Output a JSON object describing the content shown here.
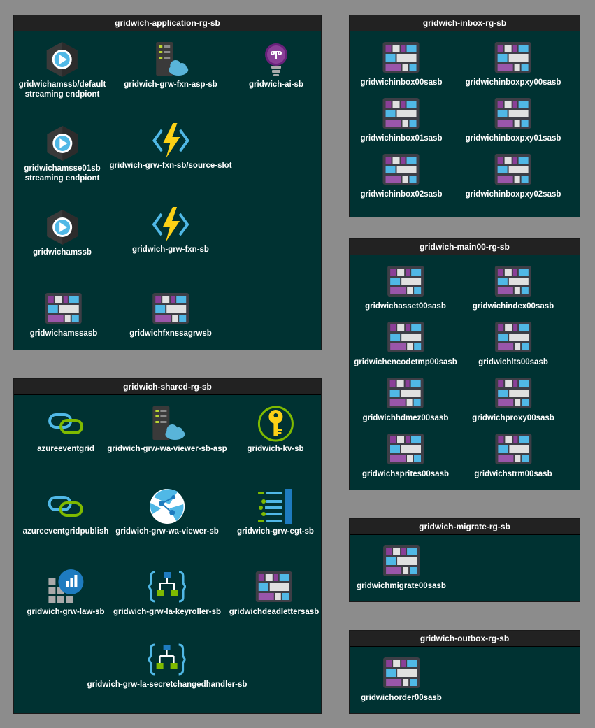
{
  "groups": {
    "application": {
      "title": "gridwich-application-rg-sb",
      "nodes": [
        {
          "label": "gridwichamssb/default",
          "label2": "streaming endpiont",
          "icon": "media-streaming-icon"
        },
        {
          "label": "gridwich-grw-fxn-asp-sb",
          "icon": "app-service-plan-icon"
        },
        {
          "label": "gridwich-ai-sb",
          "icon": "application-insights-icon"
        },
        {
          "label": "gridwichamsse01sb",
          "label2": "streaming endpiont",
          "icon": "media-streaming-icon"
        },
        {
          "label": "gridwich-grw-fxn-sb/source-slot",
          "icon": "function-app-icon"
        },
        {
          "label": "gridwichamssb",
          "icon": "media-services-icon"
        },
        {
          "label": "gridwich-grw-fxn-sb",
          "icon": "function-app-icon"
        },
        {
          "label": "gridwichamssasb",
          "icon": "storage-account-icon"
        },
        {
          "label": "gridwichfxnssagrwsb",
          "icon": "storage-account-icon"
        }
      ]
    },
    "shared": {
      "title": "gridwich-shared-rg-sb",
      "nodes": [
        {
          "label": "azureeventgrid",
          "icon": "event-grid-icon"
        },
        {
          "label": "gridwich-grw-wa-viewer-sb-asp",
          "icon": "app-service-plan-icon"
        },
        {
          "label": "gridwich-kv-sb",
          "icon": "key-vault-icon"
        },
        {
          "label": "azureeventgridpublish",
          "icon": "event-grid-icon"
        },
        {
          "label": "gridwich-grw-wa-viewer-sb",
          "icon": "web-app-icon"
        },
        {
          "label": "gridwich-grw-egt-sb",
          "icon": "event-grid-topic-icon"
        },
        {
          "label": "gridwich-grw-law-sb",
          "icon": "log-analytics-icon"
        },
        {
          "label": "gridwich-grw-la-keyroller-sb",
          "icon": "logic-app-icon"
        },
        {
          "label": "gridwichdeadlettersasb",
          "icon": "storage-account-icon"
        },
        {
          "label": "gridwich-grw-la-secretchangedhandler-sb",
          "icon": "logic-app-icon"
        }
      ]
    },
    "inbox": {
      "title": "gridwich-inbox-rg-sb",
      "nodes": [
        {
          "label": "gridwichinbox00sasb",
          "icon": "storage-account-icon"
        },
        {
          "label": "gridwichinboxpxy00sasb",
          "icon": "storage-account-icon"
        },
        {
          "label": "gridwichinbox01sasb",
          "icon": "storage-account-icon"
        },
        {
          "label": "gridwichinboxpxy01sasb",
          "icon": "storage-account-icon"
        },
        {
          "label": "gridwichinbox02sasb",
          "icon": "storage-account-icon"
        },
        {
          "label": "gridwichinboxpxy02sasb",
          "icon": "storage-account-icon"
        }
      ]
    },
    "main": {
      "title": "gridwich-main00-rg-sb",
      "nodes": [
        {
          "label": "gridwichasset00sasb",
          "icon": "storage-account-icon"
        },
        {
          "label": "gridwichindex00sasb",
          "icon": "storage-account-icon"
        },
        {
          "label": "gridwichencodetmp00sasb",
          "icon": "storage-account-icon"
        },
        {
          "label": "gridwichlts00sasb",
          "icon": "storage-account-icon"
        },
        {
          "label": "gridwichhdmez00sasb",
          "icon": "storage-account-icon"
        },
        {
          "label": "gridwichproxy00sasb",
          "icon": "storage-account-icon"
        },
        {
          "label": "gridwichsprites00sasb",
          "icon": "storage-account-icon"
        },
        {
          "label": "gridwichstrm00sasb",
          "icon": "storage-account-icon"
        }
      ]
    },
    "migrate": {
      "title": "gridwich-migrate-rg-sb",
      "nodes": [
        {
          "label": "gridwichmigrate00sasb",
          "icon": "storage-account-icon"
        }
      ]
    },
    "outbox": {
      "title": "gridwich-outbox-rg-sb",
      "nodes": [
        {
          "label": "gridwichorder00sasb",
          "icon": "storage-account-icon"
        }
      ]
    }
  },
  "colors": {
    "background": "#8c8c8c",
    "group_fill": "#003232",
    "header_fill": "#222222",
    "text": "#ffffff"
  }
}
